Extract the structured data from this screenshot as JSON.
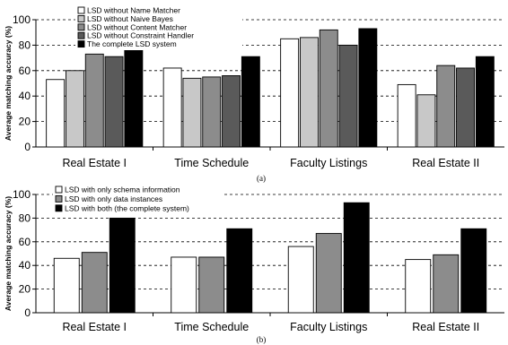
{
  "chart_data": [
    {
      "type": "bar",
      "caption": "(a)",
      "ylabel": "Average matching accuracy (%)",
      "ylim": [
        0,
        100
      ],
      "yticks": [
        0,
        20,
        40,
        60,
        80,
        100
      ],
      "grid": "dashed horizontal",
      "legend_position": "top-left",
      "categories": [
        "Real Estate I",
        "Time Schedule",
        "Faculty Listings",
        "Real Estate II"
      ],
      "series": [
        {
          "name": "LSD without Name Matcher",
          "color": "#ffffff",
          "values": [
            53,
            62,
            85,
            49
          ]
        },
        {
          "name": "LSD without Naive Bayes",
          "color": "#c8c8c8",
          "values": [
            60,
            54,
            86,
            41
          ]
        },
        {
          "name": "LSD without Content Matcher",
          "color": "#8c8c8c",
          "values": [
            73,
            55,
            92,
            64
          ]
        },
        {
          "name": "LSD without Constraint Handler",
          "color": "#5a5a5a",
          "values": [
            71,
            56,
            80,
            62
          ]
        },
        {
          "name": "The complete LSD system",
          "color": "#000000",
          "values": [
            80,
            71,
            93,
            71
          ]
        }
      ]
    },
    {
      "type": "bar",
      "caption": "(b)",
      "ylabel": "Average matching accuracy (%)",
      "ylim": [
        0,
        100
      ],
      "yticks": [
        0,
        20,
        40,
        60,
        80,
        100
      ],
      "grid": "dashed horizontal",
      "legend_position": "top-left",
      "categories": [
        "Real Estate I",
        "Time Schedule",
        "Faculty Listings",
        "Real Estate II"
      ],
      "series": [
        {
          "name": "LSD with only schema information",
          "color": "#ffffff",
          "values": [
            46,
            47,
            56,
            45
          ]
        },
        {
          "name": "LSD with only data instances",
          "color": "#8c8c8c",
          "values": [
            51,
            47,
            67,
            49
          ]
        },
        {
          "name": "LSD with both (the complete system)",
          "color": "#000000",
          "values": [
            80,
            71,
            93,
            71
          ]
        }
      ]
    }
  ]
}
